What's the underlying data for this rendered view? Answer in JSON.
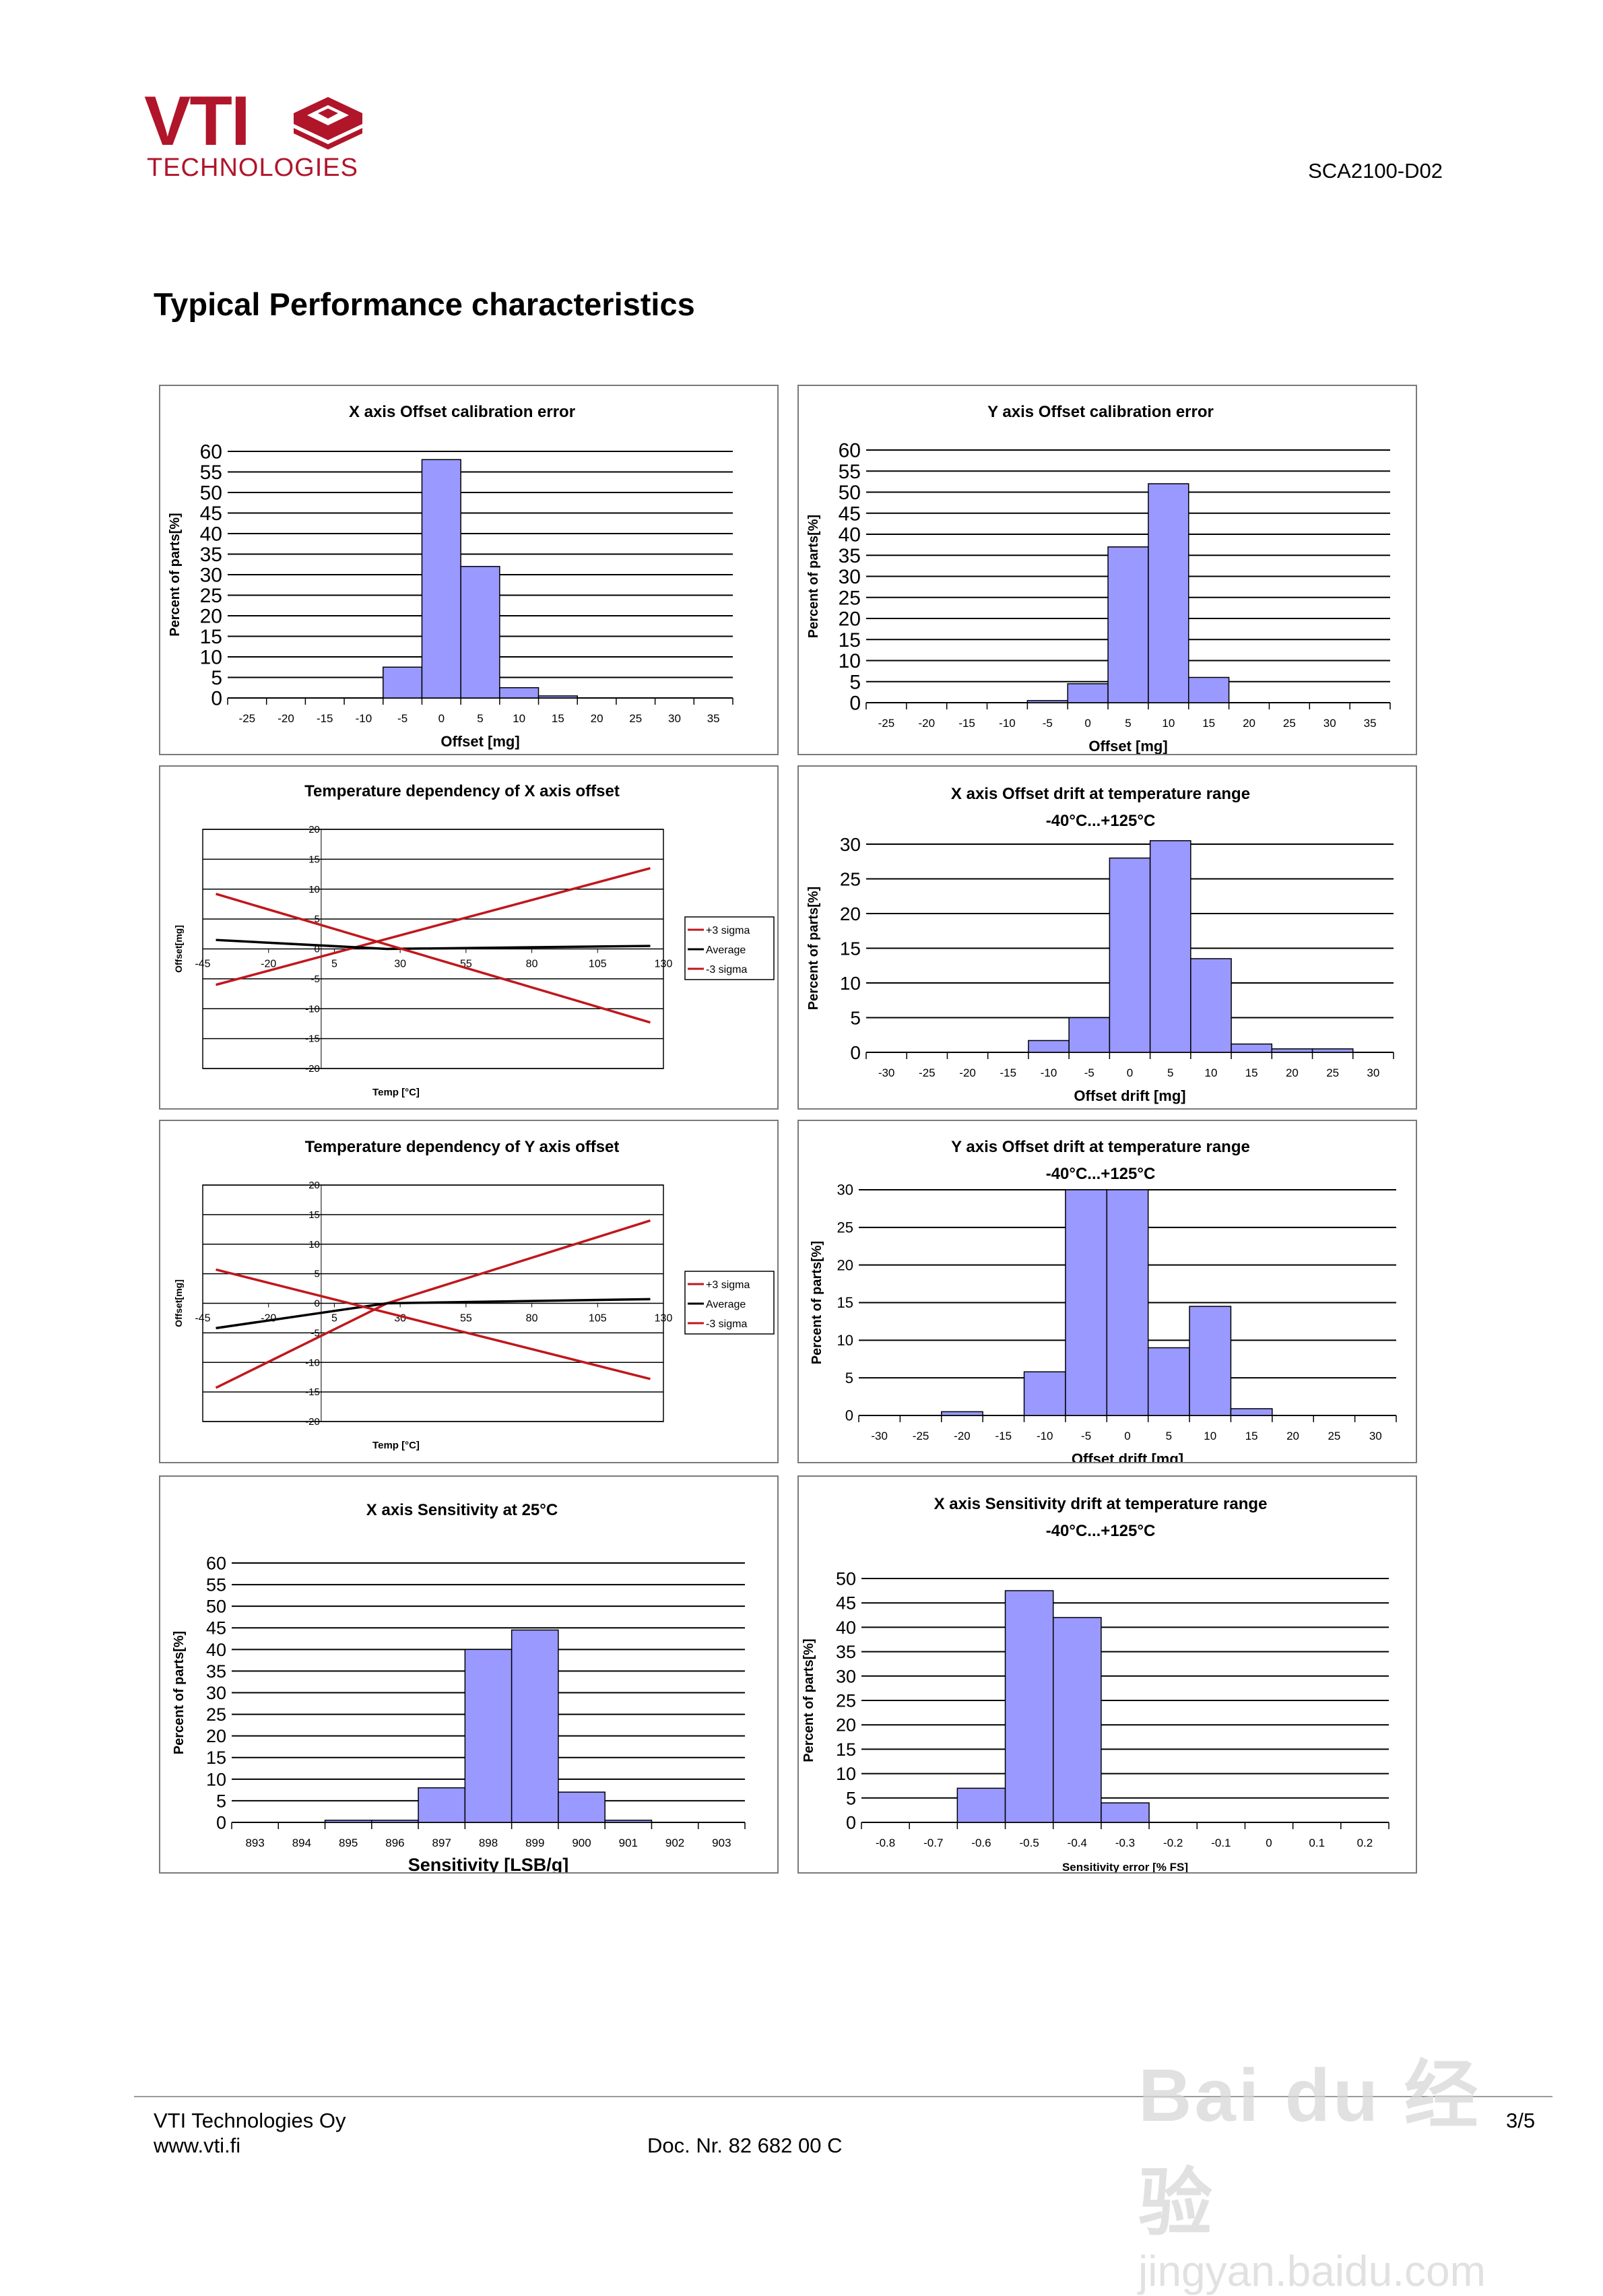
{
  "header": {
    "logo_text": "VTI",
    "logo_subtext": "TECHNOLOGIES",
    "brand_color": "#b0152a",
    "doc_id": "SCA2100-D02",
    "page_title": "Typical Performance characteristics"
  },
  "footer": {
    "company": "VTI Technologies Oy",
    "website": "www.vti.fi",
    "doc_number": "Doc. Nr. 82 682 00 C",
    "page": "3/5"
  },
  "watermark": {
    "line1": "Bai du 经验",
    "line2": "jingyan.baidu.com"
  },
  "colors": {
    "bar_fill": "#9999ff",
    "sigma_line": "#c0171c",
    "average_line": "#000000"
  },
  "chart_data": [
    {
      "type": "bar",
      "title": [
        "X axis Offset calibration error"
      ],
      "xlabel": "Offset  [mg]",
      "ylabel": "Percent of parts[%]",
      "categories": [
        "-25",
        "-20",
        "-15",
        "-10",
        "-5",
        "0",
        "5",
        "10",
        "15",
        "20",
        "25",
        "30",
        "35"
      ],
      "values": [
        0,
        0,
        0,
        0,
        7.5,
        58,
        32,
        2.5,
        0.5,
        0,
        0,
        0,
        0
      ],
      "ylim": [
        0,
        60
      ],
      "ystep": 5,
      "grid": true
    },
    {
      "type": "bar",
      "title": [
        "Y axis Offset calibration error"
      ],
      "xlabel": "Offset  [mg]",
      "ylabel": "Percent of parts[%]",
      "categories": [
        "-25",
        "-20",
        "-15",
        "-10",
        "-5",
        "0",
        "5",
        "10",
        "15",
        "20",
        "25",
        "30",
        "35"
      ],
      "values": [
        0,
        0,
        0,
        0,
        0.5,
        4.5,
        37,
        52,
        6,
        0,
        0,
        0,
        0
      ],
      "ylim": [
        0,
        60
      ],
      "ystep": 5,
      "grid": true
    },
    {
      "type": "line",
      "title": [
        "Temperature dependency of X axis offset"
      ],
      "xlabel": "Temp [°C]",
      "ylabel": "Offset[mg]",
      "xticks": [
        -45,
        -20,
        5,
        30,
        55,
        80,
        105,
        130
      ],
      "xlim": [
        -45,
        130
      ],
      "ylim": [
        -20,
        20
      ],
      "ystep": 5,
      "grid": true,
      "legend": "right",
      "series": [
        {
          "name": "+3 sigma",
          "color": "#c0171c",
          "points": [
            [
              -40,
              -6
            ],
            [
              125,
              13.5
            ]
          ]
        },
        {
          "name": "Average",
          "color": "#000000",
          "points": [
            [
              -40,
              1.5
            ],
            [
              25,
              0
            ],
            [
              125,
              0.5
            ]
          ]
        },
        {
          "name": "-3 sigma",
          "color": "#c0171c",
          "points": [
            [
              -40,
              9.2
            ],
            [
              125,
              -12.3
            ]
          ]
        }
      ]
    },
    {
      "type": "bar",
      "title": [
        "X axis Offset drift at temperature range",
        "-40°C...+125°C"
      ],
      "xlabel": "Offset drift [mg]",
      "ylabel": "Percent of parts[%]",
      "categories": [
        "-30",
        "-25",
        "-20",
        "-15",
        "-10",
        "-5",
        "0",
        "5",
        "10",
        "15",
        "20",
        "25",
        "30"
      ],
      "values": [
        0,
        0,
        0,
        0,
        1.7,
        5,
        28,
        30.5,
        13.5,
        1.2,
        0.5,
        0.5,
        0
      ],
      "ylim": [
        0,
        30
      ],
      "ystep": 5,
      "grid": true
    },
    {
      "type": "line",
      "title": [
        "Temperature dependency of Y axis offset"
      ],
      "xlabel": "Temp [°C]",
      "ylabel": "Offset[mg]",
      "xticks": [
        -45,
        -20,
        5,
        30,
        55,
        80,
        105,
        130
      ],
      "xlim": [
        -45,
        130
      ],
      "ylim": [
        -20,
        20
      ],
      "ystep": 5,
      "grid": true,
      "legend": "right",
      "series": [
        {
          "name": "+3 sigma",
          "color": "#c0171c",
          "points": [
            [
              -40,
              -14.3
            ],
            [
              25,
              0
            ],
            [
              125,
              14
            ]
          ]
        },
        {
          "name": "Average",
          "color": "#000000",
          "points": [
            [
              -40,
              -4.2
            ],
            [
              25,
              0
            ],
            [
              125,
              0.7
            ]
          ]
        },
        {
          "name": "-3 sigma",
          "color": "#c0171c",
          "points": [
            [
              -40,
              5.7
            ],
            [
              125,
              -12.8
            ]
          ]
        }
      ]
    },
    {
      "type": "bar",
      "title": [
        "Y axis Offset drift at temperature range",
        "-40°C...+125°C"
      ],
      "xlabel": "Offset drift [mg]",
      "ylabel": "Percent of parts[%]",
      "categories": [
        "-30",
        "-25",
        "-20",
        "-15",
        "-10",
        "-5",
        "0",
        "5",
        "10",
        "15",
        "20",
        "25",
        "30"
      ],
      "values": [
        0,
        0,
        0.5,
        0,
        5.8,
        30,
        30,
        9,
        14.5,
        0.9,
        0,
        0,
        0
      ],
      "ylim": [
        0,
        30
      ],
      "ystep": 5,
      "grid": true
    },
    {
      "type": "bar",
      "title": [
        "X axis Sensitivity at 25°C"
      ],
      "xlabel": "Sensitivity  [LSB/g]",
      "ylabel": "Percent of parts[%]",
      "categories": [
        "893",
        "894",
        "895",
        "896",
        "897",
        "898",
        "899",
        "900",
        "901",
        "902",
        "903"
      ],
      "values": [
        0,
        0,
        0.5,
        0.5,
        8,
        40,
        44.5,
        7,
        0.5,
        0,
        0
      ],
      "ylim": [
        0,
        60
      ],
      "ystep": 5,
      "grid": true
    },
    {
      "type": "bar",
      "title": [
        "X axis Sensitivity drift at temperature range",
        "-40°C...+125°C"
      ],
      "xlabel": "Sensitivity error [% FS]",
      "ylabel": "Percent of parts[%]",
      "categories": [
        "-0.8",
        "-0.7",
        "-0.6",
        "-0.5",
        "-0.4",
        "-0.3",
        "-0.2",
        "-0.1",
        "0",
        "0.1",
        "0.2"
      ],
      "values": [
        0,
        0,
        7,
        47.5,
        42,
        4,
        0,
        0,
        0,
        0,
        0
      ],
      "ylim": [
        0,
        50
      ],
      "ystep": 5,
      "grid": true
    }
  ]
}
